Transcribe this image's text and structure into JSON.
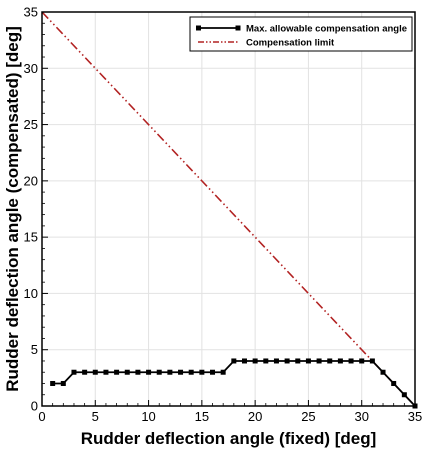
{
  "chart_data": {
    "type": "line",
    "xlabel": "Rudder deflection angle (fixed) [deg]",
    "ylabel": "Rudder deflection angle (compensated) [deg]",
    "xlim": [
      0,
      35
    ],
    "ylim": [
      0,
      35
    ],
    "x_ticks": [
      0,
      5,
      10,
      15,
      20,
      25,
      30,
      35
    ],
    "y_ticks": [
      0,
      5,
      10,
      15,
      20,
      25,
      30,
      35
    ],
    "grid": true,
    "legend_position": "top-right",
    "series": [
      {
        "name": "Max. allowable compensation angle",
        "style": "solid-square-markers",
        "color": "#000000",
        "x": [
          1,
          2,
          3,
          4,
          5,
          6,
          7,
          8,
          9,
          10,
          11,
          12,
          13,
          14,
          15,
          16,
          17,
          18,
          19,
          20,
          21,
          22,
          23,
          24,
          25,
          26,
          27,
          28,
          29,
          30,
          31,
          32,
          33,
          34,
          35
        ],
        "y": [
          2,
          2,
          3,
          3,
          3,
          3,
          3,
          3,
          3,
          3,
          3,
          3,
          3,
          3,
          3,
          3,
          3,
          4,
          4,
          4,
          4,
          4,
          4,
          4,
          4,
          4,
          4,
          4,
          4,
          4,
          4,
          3,
          2,
          1,
          0
        ]
      },
      {
        "name": "Compensation limit",
        "style": "dash-dot-dot",
        "color": "#b22222",
        "x": [
          0,
          35
        ],
        "y": [
          35,
          0
        ]
      }
    ]
  }
}
